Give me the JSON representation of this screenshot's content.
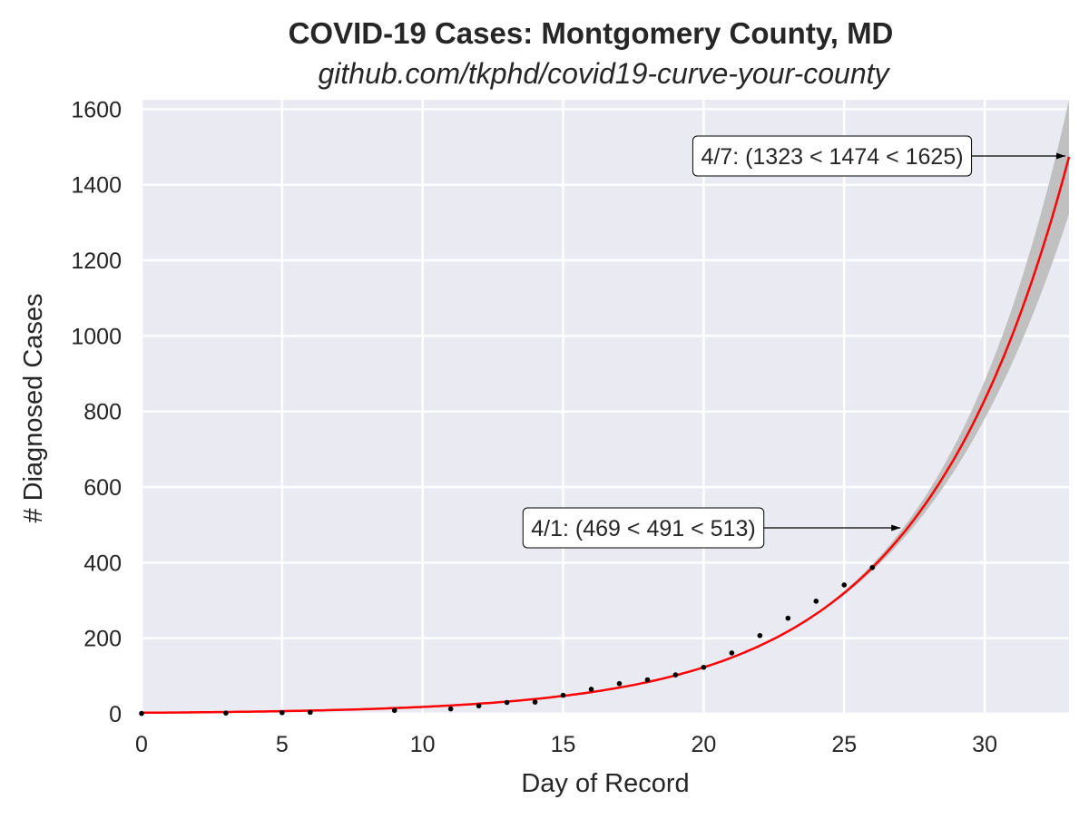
{
  "chart_data": {
    "type": "scatter",
    "title": "COVID-19 Cases: Montgomery County, MD",
    "subtitle": "github.com/tkphd/covid19-curve-your-county",
    "xlabel": "Day of Record",
    "ylabel": "# Diagnosed Cases",
    "xlim": [
      0,
      33
    ],
    "ylim": [
      0,
      1625
    ],
    "xticks": [
      0,
      5,
      10,
      15,
      20,
      25,
      30
    ],
    "yticks": [
      0,
      200,
      400,
      600,
      800,
      1000,
      1200,
      1400,
      1600
    ],
    "grid": true,
    "background": "#EAEAF2",
    "series": [
      {
        "kind": "points",
        "color": "#000000",
        "x": [
          0,
          3,
          5,
          6,
          9,
          11,
          12,
          13,
          14,
          15,
          16,
          17,
          18,
          19,
          20,
          21,
          22,
          23,
          24,
          25,
          26
        ],
        "y": [
          1,
          2,
          3,
          4,
          9,
          13,
          21,
          30,
          31,
          49,
          65,
          80,
          90,
          103,
          123,
          161,
          207,
          253,
          298,
          341,
          387
        ]
      },
      {
        "kind": "fit",
        "color": "#FF0000",
        "model": "exponential",
        "y_at_day_26": 387,
        "y_at_day_33": 1474
      },
      {
        "kind": "band",
        "color": "#C0C0C0",
        "lower_at_day_33": 1323,
        "upper_at_day_33": 1625
      }
    ],
    "annotations": [
      {
        "text": "4/7: (1323 < 1474 < 1625)",
        "x": 33,
        "y": 1474,
        "low": 1323,
        "high": 1625
      },
      {
        "text": "4/1: (469 < 491 < 513)",
        "x": 27,
        "y": 491,
        "low": 469,
        "high": 513
      }
    ]
  }
}
